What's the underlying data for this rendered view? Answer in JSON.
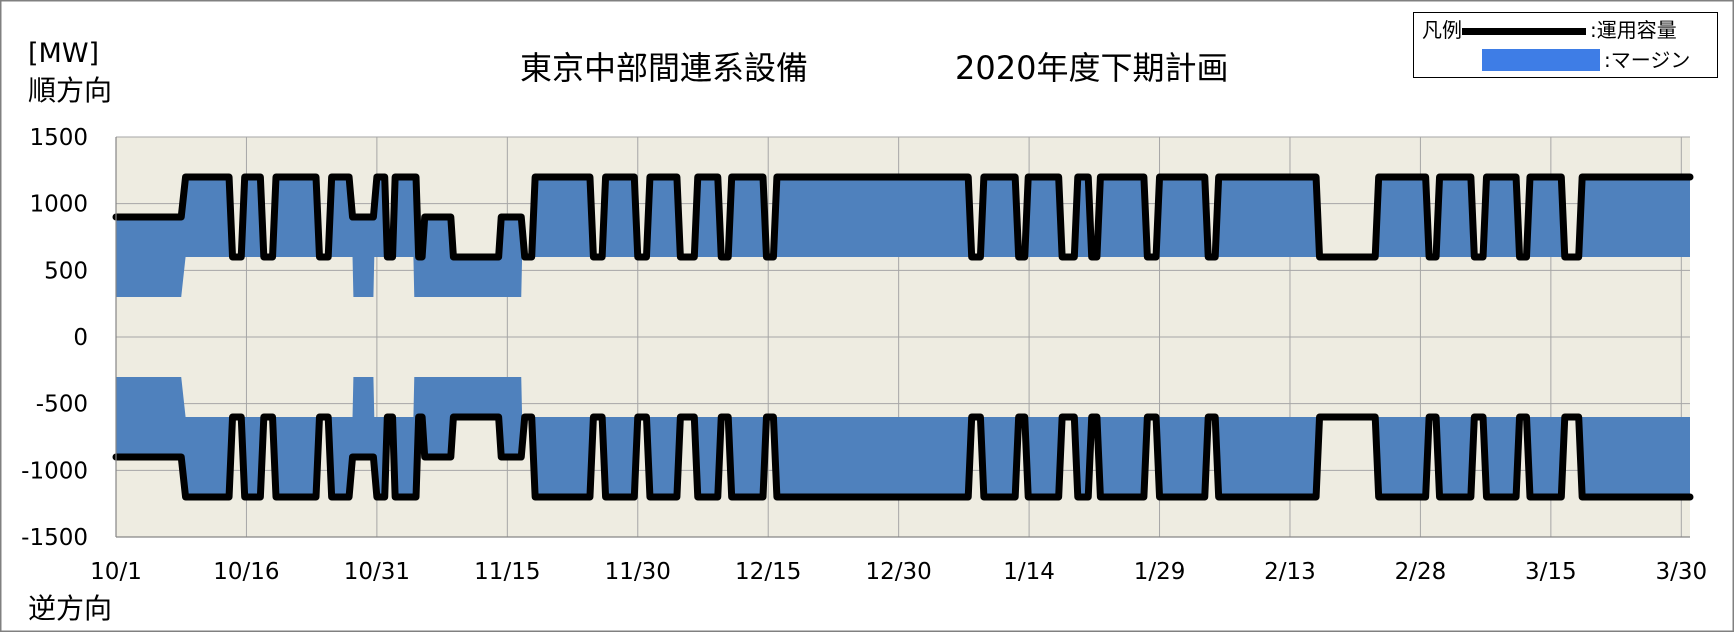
{
  "chart_data": {
    "type": "area",
    "title": "東京中部間連系設備",
    "subtitle": "2020年度下期計画",
    "unit_label": "[MW]",
    "forward_direction_label": "順方向",
    "reverse_direction_label": "逆方向",
    "ylim": [
      -1500,
      1500
    ],
    "y_ticks": [
      1500,
      1000,
      500,
      0,
      -500,
      -1000,
      -1500
    ],
    "x_tick_labels": [
      "10/1",
      "10/16",
      "10/31",
      "11/15",
      "11/30",
      "12/15",
      "12/30",
      "1/14",
      "1/29",
      "2/13",
      "2/28",
      "3/15",
      "3/30"
    ],
    "xlim_days": [
      0,
      181
    ],
    "grid": true,
    "legend": {
      "title": "凡例",
      "position": "top-right",
      "items": [
        {
          "name": ":運用容量",
          "style": "line",
          "color": "#000000"
        },
        {
          "name": ":マージン",
          "style": "fill",
          "color": "#3e7de6"
        }
      ]
    },
    "colors": {
      "margin_fill": "#4f81bd",
      "base_fill": "#eeece1",
      "capacity_line": "#000000",
      "grid": "#a6a6a6"
    },
    "series": [
      {
        "name": ":運用容量",
        "points": [
          [
            0,
            900
          ],
          [
            7.5,
            900
          ],
          [
            8,
            1200
          ],
          [
            13,
            1200
          ],
          [
            13.4,
            600
          ],
          [
            14.4,
            600
          ],
          [
            14.8,
            1200
          ],
          [
            16.6,
            1200
          ],
          [
            17,
            600
          ],
          [
            18,
            600
          ],
          [
            18.4,
            1200
          ],
          [
            23,
            1200
          ],
          [
            23.4,
            600
          ],
          [
            24.4,
            600
          ],
          [
            24.8,
            1200
          ],
          [
            26.8,
            1200
          ],
          [
            27.2,
            900
          ],
          [
            29.6,
            900
          ],
          [
            30,
            1200
          ],
          [
            30.9,
            1200
          ],
          [
            31.2,
            600
          ],
          [
            31.8,
            600
          ],
          [
            32.1,
            1200
          ],
          [
            34.5,
            1200
          ],
          [
            34.8,
            600
          ],
          [
            35.2,
            600
          ],
          [
            35.5,
            900
          ],
          [
            38.5,
            900
          ],
          [
            38.8,
            600
          ],
          [
            44,
            600
          ],
          [
            44.3,
            900
          ],
          [
            46.6,
            900
          ],
          [
            47,
            600
          ],
          [
            47.8,
            600
          ],
          [
            48.2,
            1200
          ],
          [
            54.5,
            1200
          ],
          [
            54.9,
            600
          ],
          [
            55.9,
            600
          ],
          [
            56.3,
            1200
          ],
          [
            59.6,
            1200
          ],
          [
            60,
            600
          ],
          [
            61,
            600
          ],
          [
            61.4,
            1200
          ],
          [
            64.5,
            1200
          ],
          [
            64.9,
            600
          ],
          [
            66.5,
            600
          ],
          [
            66.9,
            1200
          ],
          [
            69.2,
            1200
          ],
          [
            69.6,
            600
          ],
          [
            70.4,
            600
          ],
          [
            70.8,
            1200
          ],
          [
            74.4,
            1200
          ],
          [
            74.8,
            600
          ],
          [
            75.6,
            600
          ],
          [
            76,
            1200
          ],
          [
            98,
            1200
          ],
          [
            98.4,
            600
          ],
          [
            99.4,
            600
          ],
          [
            99.8,
            1200
          ],
          [
            103.4,
            1200
          ],
          [
            103.8,
            600
          ],
          [
            104.5,
            600
          ],
          [
            104.9,
            1200
          ],
          [
            108.4,
            1200
          ],
          [
            108.8,
            600
          ],
          [
            110.2,
            600
          ],
          [
            110.6,
            1200
          ],
          [
            111.8,
            1200
          ],
          [
            112.2,
            600
          ],
          [
            112.8,
            600
          ],
          [
            113.2,
            1200
          ],
          [
            118.2,
            1200
          ],
          [
            118.6,
            600
          ],
          [
            119.6,
            600
          ],
          [
            120,
            1200
          ],
          [
            125.2,
            1200
          ],
          [
            125.6,
            600
          ],
          [
            126.4,
            600
          ],
          [
            126.8,
            1200
          ],
          [
            138,
            1200
          ],
          [
            138.4,
            600
          ],
          [
            144.8,
            600
          ],
          [
            145.2,
            1200
          ],
          [
            150.6,
            1200
          ],
          [
            151,
            600
          ],
          [
            151.8,
            600
          ],
          [
            152.2,
            1200
          ],
          [
            155.8,
            1200
          ],
          [
            156.2,
            600
          ],
          [
            157.2,
            600
          ],
          [
            157.6,
            1200
          ],
          [
            161,
            1200
          ],
          [
            161.4,
            600
          ],
          [
            162.2,
            600
          ],
          [
            162.6,
            1200
          ],
          [
            166.2,
            1200
          ],
          [
            166.6,
            600
          ],
          [
            168.2,
            600
          ],
          [
            168.6,
            1200
          ],
          [
            181,
            1200
          ]
        ]
      },
      {
        "name": ":マージン",
        "value_mw": 300,
        "points": [
          [
            0,
            300
          ],
          [
            7.5,
            300
          ],
          [
            8,
            600
          ],
          [
            27.2,
            600
          ],
          [
            27.3,
            300
          ],
          [
            29.6,
            300
          ],
          [
            29.7,
            600
          ],
          [
            34.2,
            600
          ],
          [
            34.3,
            300
          ],
          [
            46.6,
            300
          ],
          [
            46.7,
            600
          ],
          [
            181,
            600
          ]
        ]
      }
    ]
  }
}
